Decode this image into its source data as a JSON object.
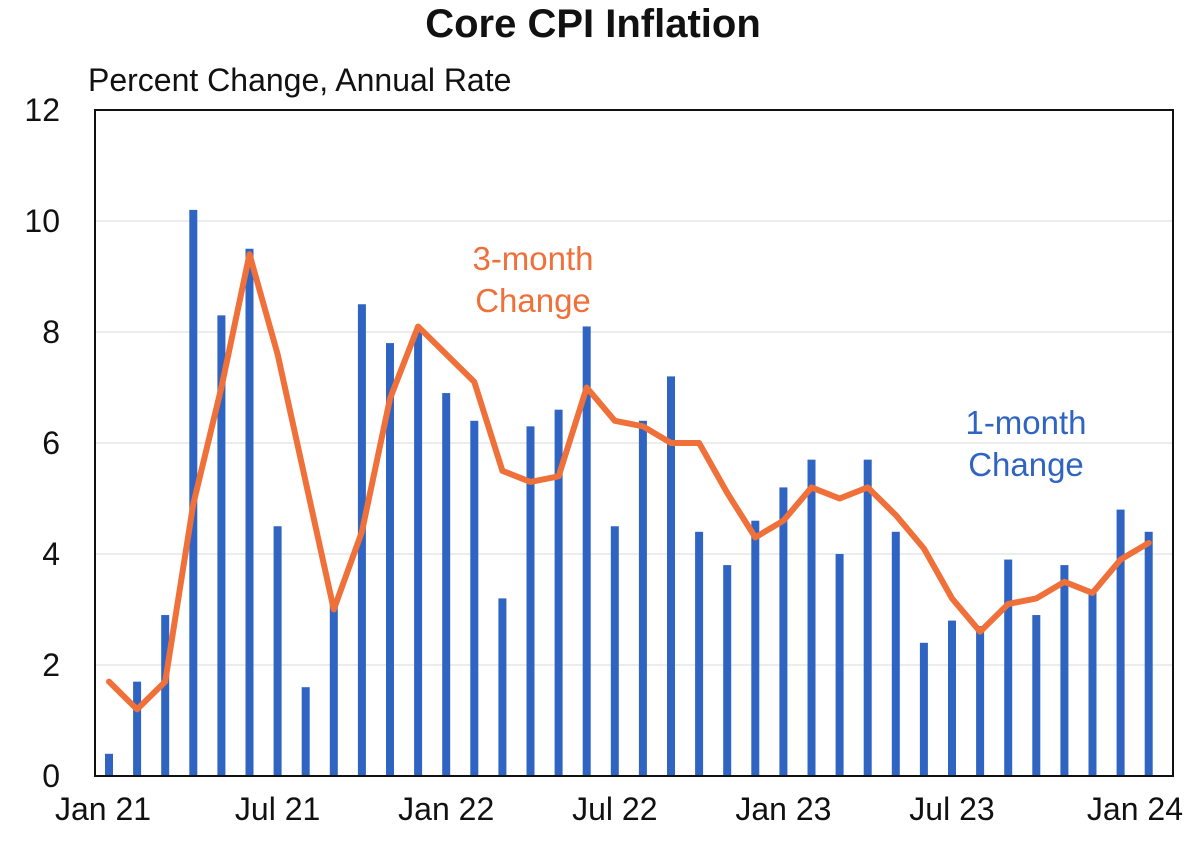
{
  "chart_data": {
    "type": "bar",
    "title": "Core CPI Inflation",
    "ylabel": "Percent Change, Annual Rate",
    "xlabel": "",
    "ylim": [
      0,
      12
    ],
    "yticks": [
      "0",
      "2",
      "4",
      "6",
      "8",
      "10",
      "12"
    ],
    "x_tick_labels": [
      "Jan 21",
      "Jul 21",
      "Jan 22",
      "Jul 22",
      "Jan 23",
      "Jul 23",
      "Jan 24"
    ],
    "grid": true,
    "colors": {
      "bars": "#2f64c2",
      "line": "#f0703a",
      "grid": "#d9d9d9",
      "frame": "#111111"
    },
    "months": [
      "2021-01",
      "2021-02",
      "2021-03",
      "2021-04",
      "2021-05",
      "2021-06",
      "2021-07",
      "2021-08",
      "2021-09",
      "2021-10",
      "2021-11",
      "2021-12",
      "2022-01",
      "2022-02",
      "2022-03",
      "2022-04",
      "2022-05",
      "2022-06",
      "2022-07",
      "2022-08",
      "2022-09",
      "2022-10",
      "2022-11",
      "2022-12",
      "2023-01",
      "2023-02",
      "2023-03",
      "2023-04",
      "2023-05",
      "2023-06",
      "2023-07",
      "2023-08",
      "2023-09",
      "2023-10",
      "2023-11",
      "2023-12",
      "2024-01",
      "2024-02"
    ],
    "series": [
      {
        "kind": "bar",
        "values": [
          0.4,
          1.7,
          2.9,
          10.2,
          8.3,
          9.5,
          4.5,
          1.6,
          3.1,
          8.5,
          7.8,
          8.0,
          6.9,
          6.4,
          3.2,
          6.3,
          6.6,
          8.1,
          4.5,
          6.4,
          7.2,
          4.4,
          3.8,
          4.6,
          5.2,
          5.7,
          4.0,
          5.7,
          4.4,
          2.4,
          2.8,
          2.7,
          3.9,
          2.9,
          3.8,
          3.3,
          4.8,
          4.4
        ]
      },
      {
        "kind": "line",
        "values": [
          1.7,
          1.2,
          1.7,
          4.9,
          7.0,
          9.4,
          7.6,
          5.3,
          3.0,
          4.4,
          6.8,
          8.1,
          7.6,
          7.1,
          5.5,
          5.3,
          5.4,
          7.0,
          6.4,
          6.3,
          6.0,
          6.0,
          5.1,
          4.3,
          4.6,
          5.2,
          5.0,
          5.2,
          4.7,
          4.1,
          3.2,
          2.6,
          3.1,
          3.2,
          3.5,
          3.3,
          3.9,
          4.2
        ]
      }
    ],
    "annotations": [
      {
        "lines": [
          "3-month",
          "Change"
        ],
        "series": "line"
      },
      {
        "lines": [
          "1-month",
          "Change"
        ],
        "series": "bar"
      }
    ]
  }
}
